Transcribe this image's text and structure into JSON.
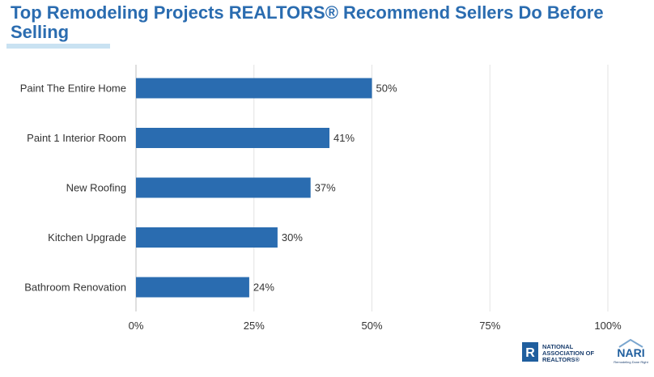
{
  "title": "Top Remodeling Projects REALTORS® Recommend Sellers Do Before Selling",
  "chart_data": {
    "type": "bar",
    "orientation": "horizontal",
    "categories": [
      "Paint The Entire Home",
      "Paint 1 Interior Room",
      "New Roofing",
      "Kitchen Upgrade",
      "Bathroom Renovation"
    ],
    "values": [
      50,
      41,
      37,
      30,
      24
    ],
    "value_labels": [
      "50%",
      "41%",
      "37%",
      "30%",
      "24%"
    ],
    "xlim": [
      0,
      100
    ],
    "xticks": [
      0,
      25,
      50,
      75,
      100
    ],
    "xtick_labels": [
      "0%",
      "25%",
      "50%",
      "75%",
      "100%"
    ],
    "grid": "vertical",
    "bar_color": "#2a6cb0"
  },
  "logos": {
    "nar": {
      "mark": "R",
      "lines": [
        "NATIONAL",
        "ASSOCIATION OF",
        "REALTORS®"
      ]
    },
    "nari": {
      "name": "NARI",
      "tagline": "Remodeling Done Right"
    }
  }
}
